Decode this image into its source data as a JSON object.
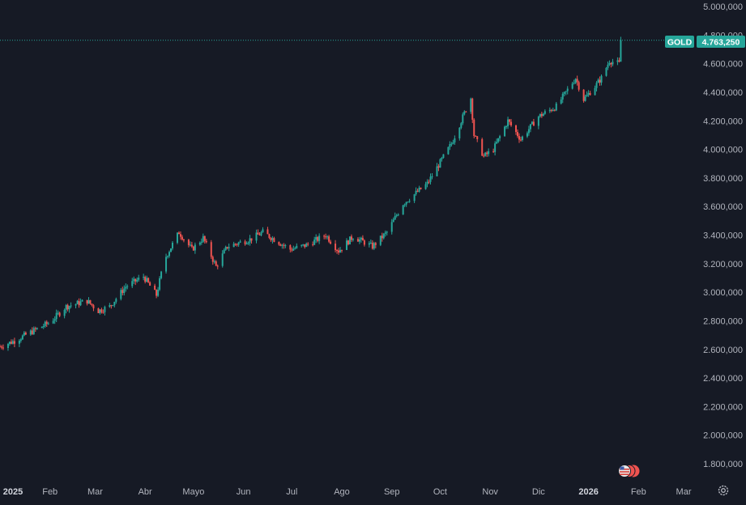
{
  "symbol": {
    "ticker": "GOLD",
    "last_price_label": "4.763,250",
    "last_price": 4763250
  },
  "colors": {
    "background": "#161a25",
    "up": "#26a69a",
    "down": "#ef5350",
    "axis_text": "#b2b5be",
    "price_line": "#26a69a"
  },
  "settings_icon": "gear-icon",
  "events_icon": "us-flag-event-icon",
  "chart_data": {
    "type": "candlestick",
    "y_ticks": [
      "5.000,000",
      "4.800,000",
      "4.600,000",
      "4.400,000",
      "4.200,000",
      "4.000,000",
      "3.800,000",
      "3.600,000",
      "3.400,000",
      "3.200,000",
      "3.000,000",
      "2.800,000",
      "2.600,000",
      "2.400,000",
      "2.200,000",
      "2.000,000",
      "1.800,000"
    ],
    "y_tick_values": [
      5000000,
      4800000,
      4600000,
      4400000,
      4200000,
      4000000,
      3800000,
      3600000,
      3400000,
      3200000,
      3000000,
      2800000,
      2600000,
      2400000,
      2200000,
      2000000,
      1800000
    ],
    "x_ticks": [
      "2025",
      "Feb",
      "Mar",
      "Abr",
      "Mayo",
      "Jun",
      "Jul",
      "Ago",
      "Sep",
      "Oct",
      "Nov",
      "Dic",
      "2026",
      "Feb",
      "Mar"
    ],
    "x_tick_dates": [
      "2025-01-01",
      "2025-02-01",
      "2025-03-01",
      "2025-04-01",
      "2025-05-01",
      "2025-06-01",
      "2025-07-01",
      "2025-08-01",
      "2025-09-01",
      "2025-10-01",
      "2025-11-01",
      "2025-12-01",
      "2026-01-01",
      "2026-02-01",
      "2026-03-01"
    ],
    "bold_x_ticks": [
      "2025",
      "2026"
    ],
    "ylim": [
      1700000,
      5050000
    ],
    "xlim": [
      "2025-01-01",
      "2026-03-05"
    ],
    "grid": false,
    "path": [
      [
        "2025-01-01",
        2620000
      ],
      [
        "2025-01-10",
        2660000
      ],
      [
        "2025-01-20",
        2720000
      ],
      [
        "2025-02-01",
        2790000
      ],
      [
        "2025-02-11",
        2900000
      ],
      [
        "2025-02-24",
        2940000
      ],
      [
        "2025-03-03",
        2870000
      ],
      [
        "2025-03-10",
        2900000
      ],
      [
        "2025-03-20",
        3040000
      ],
      [
        "2025-03-31",
        3110000
      ],
      [
        "2025-04-08",
        2980000
      ],
      [
        "2025-04-13",
        3230000
      ],
      [
        "2025-04-22",
        3420000
      ],
      [
        "2025-04-30",
        3300000
      ],
      [
        "2025-05-07",
        3380000
      ],
      [
        "2025-05-15",
        3180000
      ],
      [
        "2025-05-22",
        3320000
      ],
      [
        "2025-06-05",
        3370000
      ],
      [
        "2025-06-13",
        3420000
      ],
      [
        "2025-06-30",
        3300000
      ],
      [
        "2025-07-10",
        3330000
      ],
      [
        "2025-07-22",
        3400000
      ],
      [
        "2025-07-30",
        3290000
      ],
      [
        "2025-08-08",
        3390000
      ],
      [
        "2025-08-20",
        3320000
      ],
      [
        "2025-08-29",
        3420000
      ],
      [
        "2025-09-08",
        3620000
      ],
      [
        "2025-09-23",
        3760000
      ],
      [
        "2025-10-08",
        4040000
      ],
      [
        "2025-10-20",
        4360000
      ],
      [
        "2025-10-22",
        4100000
      ],
      [
        "2025-10-28",
        3950000
      ],
      [
        "2025-11-03",
        4000000
      ],
      [
        "2025-11-12",
        4200000
      ],
      [
        "2025-11-20",
        4070000
      ],
      [
        "2025-12-01",
        4230000
      ],
      [
        "2025-12-12",
        4300000
      ],
      [
        "2025-12-24",
        4500000
      ],
      [
        "2025-12-29",
        4350000
      ],
      [
        "2026-01-05",
        4440000
      ],
      [
        "2026-01-09",
        4500000
      ],
      [
        "2026-01-14",
        4620000
      ],
      [
        "2026-01-20",
        4600000
      ],
      [
        "2026-01-21",
        4763250
      ]
    ]
  }
}
